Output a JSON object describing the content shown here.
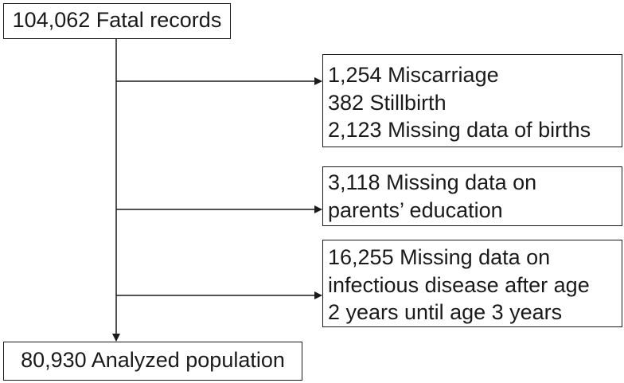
{
  "flowchart": {
    "start": {
      "text": "104,062 Fatal records"
    },
    "exclusions": [
      {
        "lines": [
          "1,254 Miscarriage",
          "382 Stillbirth",
          "2,123 Missing data of births"
        ]
      },
      {
        "lines": [
          "3,118 Missing data on",
          "parents’ education"
        ]
      },
      {
        "lines": [
          "16,255 Missing data on",
          "infectious disease after age",
          "2 years until age 3 years"
        ]
      }
    ],
    "final": {
      "text": "80,930 Analyzed population"
    }
  }
}
